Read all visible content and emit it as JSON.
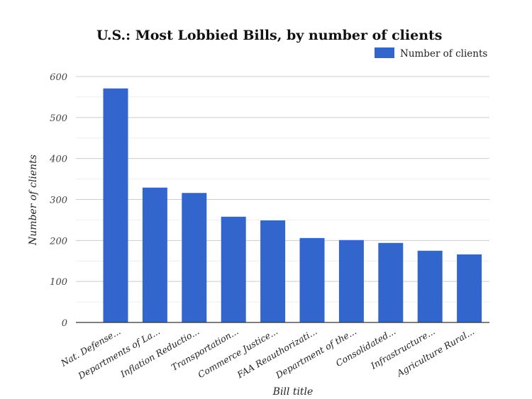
{
  "chart_data": {
    "type": "bar",
    "title": "U.S.: Most Lobbied Bills, by number of clients",
    "xlabel": "Bill title",
    "ylabel": "Number of clients",
    "ylim": [
      0,
      600
    ],
    "yticks": [
      0,
      100,
      200,
      300,
      400,
      500,
      600
    ],
    "grid": true,
    "legend_position": "top-right",
    "categories": [
      "Nat. Defense...",
      "Departments of La...",
      "Inflation Reductio...",
      "Transportation...",
      "Commerce Justice...",
      "FAA Reauthorizati...",
      "Department of the...",
      "Consolidated...",
      "Infrastructure...",
      "Agriculture Rural..."
    ],
    "series": [
      {
        "name": "Number of clients",
        "color": "#3366cc",
        "values": [
          571,
          329,
          316,
          258,
          249,
          206,
          201,
          194,
          175,
          166
        ]
      }
    ]
  }
}
